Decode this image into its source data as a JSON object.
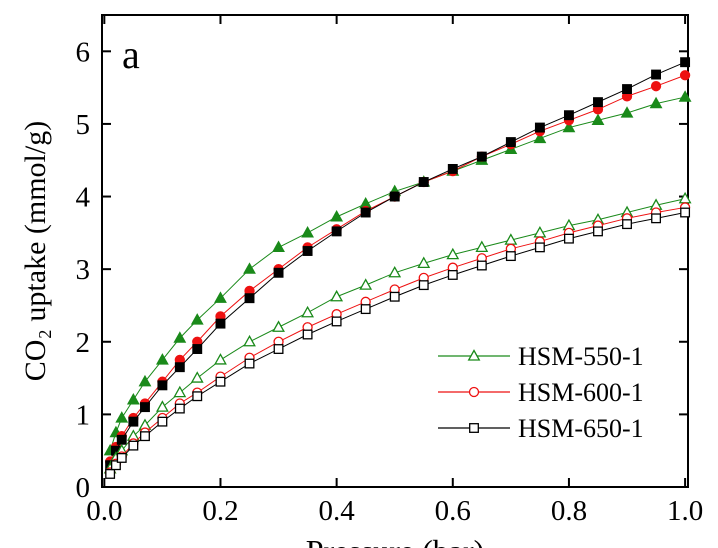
{
  "chart_data": {
    "type": "scatter",
    "annotation": "a",
    "xlabel": "Pressure (bar)",
    "ylabel": "CO₂ uptake (mmol/g)",
    "xlim": [
      -0.004,
      1.005
    ],
    "ylim": [
      0,
      6.5
    ],
    "xticks": [
      {
        "value": 0,
        "label": "0.0"
      },
      0.2,
      0.4,
      0.6,
      0.8,
      {
        "value": 1,
        "label": "1.0"
      }
    ],
    "yticks": [
      0,
      1,
      2,
      3,
      4,
      5,
      6
    ],
    "x": [
      0.01,
      0.02,
      0.03,
      0.05,
      0.07,
      0.1,
      0.13,
      0.16,
      0.2,
      0.25,
      0.3,
      0.35,
      0.4,
      0.45,
      0.5,
      0.55,
      0.6,
      0.65,
      0.7,
      0.75,
      0.8,
      0.85,
      0.9,
      0.95,
      1.0
    ],
    "series": [
      {
        "color": "#1a8a1a",
        "marker": "triangle",
        "filled": true,
        "values": [
          0.5,
          0.75,
          0.95,
          1.2,
          1.45,
          1.75,
          2.05,
          2.3,
          2.6,
          3.0,
          3.3,
          3.5,
          3.72,
          3.9,
          4.07,
          4.2,
          4.35,
          4.5,
          4.65,
          4.8,
          4.95,
          5.05,
          5.15,
          5.28,
          5.37
        ]
      },
      {
        "color": "#ee1111",
        "marker": "circle",
        "filled": true,
        "values": [
          0.35,
          0.55,
          0.7,
          0.95,
          1.15,
          1.45,
          1.75,
          2.0,
          2.35,
          2.7,
          3.0,
          3.3,
          3.55,
          3.8,
          4.0,
          4.2,
          4.35,
          4.55,
          4.72,
          4.9,
          5.05,
          5.2,
          5.38,
          5.52,
          5.67
        ]
      },
      {
        "color": "#000000",
        "marker": "square",
        "filled": true,
        "values": [
          0.3,
          0.5,
          0.65,
          0.9,
          1.1,
          1.4,
          1.65,
          1.9,
          2.25,
          2.6,
          2.95,
          3.25,
          3.52,
          3.78,
          4.0,
          4.2,
          4.38,
          4.55,
          4.75,
          4.95,
          5.12,
          5.3,
          5.48,
          5.68,
          5.85
        ]
      },
      {
        "name": "HSM-550-1",
        "color": "#1a8a1a",
        "marker": "triangle",
        "filled": false,
        "values": [
          0.25,
          0.4,
          0.5,
          0.7,
          0.85,
          1.1,
          1.3,
          1.5,
          1.75,
          2.0,
          2.2,
          2.4,
          2.62,
          2.78,
          2.95,
          3.08,
          3.2,
          3.3,
          3.4,
          3.5,
          3.6,
          3.68,
          3.78,
          3.88,
          3.97
        ]
      },
      {
        "name": "HSM-600-1",
        "color": "#ee1111",
        "marker": "circle",
        "filled": false,
        "values": [
          0.2,
          0.32,
          0.42,
          0.6,
          0.75,
          0.95,
          1.15,
          1.3,
          1.52,
          1.78,
          2.0,
          2.2,
          2.38,
          2.55,
          2.72,
          2.88,
          3.02,
          3.15,
          3.28,
          3.38,
          3.5,
          3.6,
          3.7,
          3.78,
          3.85
        ]
      },
      {
        "name": "HSM-650-1",
        "color": "#000000",
        "marker": "square",
        "filled": false,
        "values": [
          0.18,
          0.3,
          0.4,
          0.57,
          0.7,
          0.9,
          1.08,
          1.25,
          1.45,
          1.7,
          1.9,
          2.1,
          2.28,
          2.45,
          2.62,
          2.78,
          2.92,
          3.05,
          3.18,
          3.3,
          3.42,
          3.52,
          3.62,
          3.7,
          3.78
        ]
      }
    ]
  }
}
